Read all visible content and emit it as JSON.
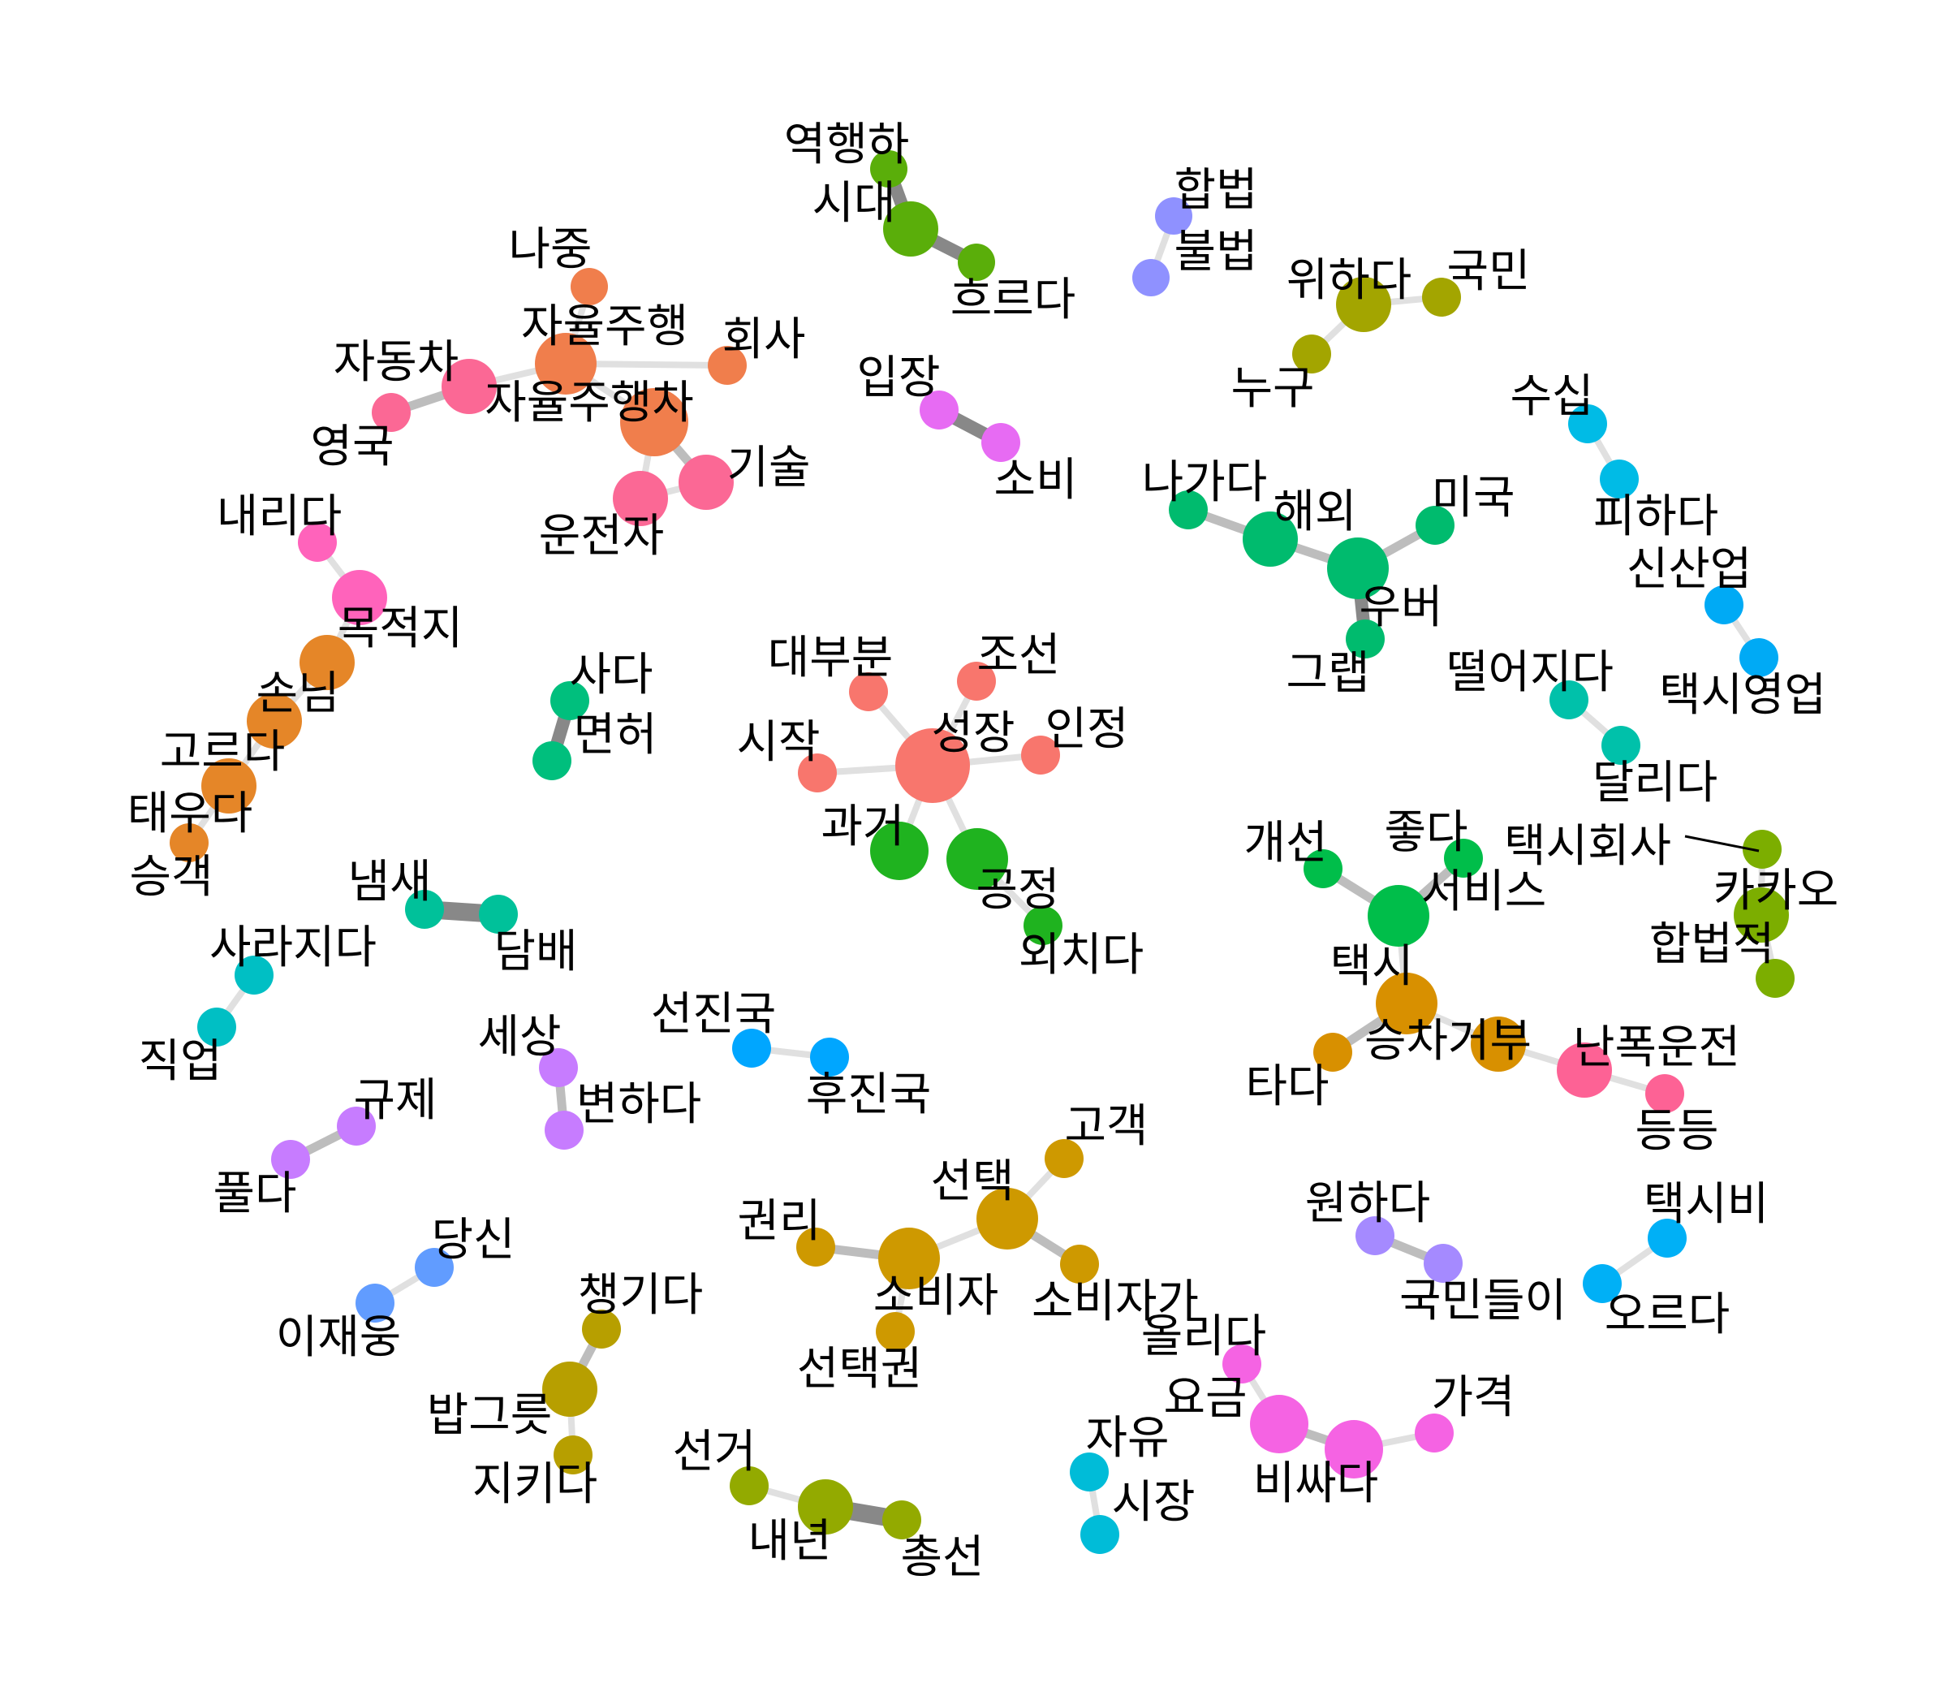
{
  "graph": {
    "nodes": [
      {
        "id": "역행하",
        "group": "g1"
      },
      {
        "id": "시대",
        "group": "g1"
      },
      {
        "id": "흐르다",
        "group": "g1"
      },
      {
        "id": "합법",
        "group": "g2"
      },
      {
        "id": "불법",
        "group": "g2"
      },
      {
        "id": "위하다",
        "group": "g3"
      },
      {
        "id": "국민",
        "group": "g3"
      },
      {
        "id": "누구",
        "group": "g3"
      },
      {
        "id": "나중",
        "group": "g4"
      },
      {
        "id": "자율주행",
        "group": "g4"
      },
      {
        "id": "회사",
        "group": "g4"
      },
      {
        "id": "자율주행차",
        "group": "g4"
      },
      {
        "id": "자동차",
        "group": "g5"
      },
      {
        "id": "영국",
        "group": "g5"
      },
      {
        "id": "운전자",
        "group": "g5"
      },
      {
        "id": "기술",
        "group": "g5"
      },
      {
        "id": "입장",
        "group": "g6"
      },
      {
        "id": "소비",
        "group": "g6"
      },
      {
        "id": "수십",
        "group": "g7"
      },
      {
        "id": "피하다",
        "group": "g7"
      },
      {
        "id": "나가다",
        "group": "g8"
      },
      {
        "id": "해외",
        "group": "g8"
      },
      {
        "id": "우버",
        "group": "g8"
      },
      {
        "id": "미국",
        "group": "g8"
      },
      {
        "id": "그랩",
        "group": "g8"
      },
      {
        "id": "신산업",
        "group": "g9"
      },
      {
        "id": "택시영업",
        "group": "g9"
      },
      {
        "id": "내리다",
        "group": "g10"
      },
      {
        "id": "목적지",
        "group": "g10"
      },
      {
        "id": "손님",
        "group": "g11"
      },
      {
        "id": "고르다",
        "group": "g11"
      },
      {
        "id": "태우다",
        "group": "g11"
      },
      {
        "id": "승객",
        "group": "g11"
      },
      {
        "id": "사다",
        "group": "g12"
      },
      {
        "id": "면허",
        "group": "g12"
      },
      {
        "id": "대부분",
        "group": "g13"
      },
      {
        "id": "조선",
        "group": "g13"
      },
      {
        "id": "시작",
        "group": "g13"
      },
      {
        "id": "성장",
        "group": "g13"
      },
      {
        "id": "인정",
        "group": "g13"
      },
      {
        "id": "과거",
        "group": "g14"
      },
      {
        "id": "공정",
        "group": "g14"
      },
      {
        "id": "외치다",
        "group": "g14"
      },
      {
        "id": "떨어지다",
        "group": "g15"
      },
      {
        "id": "달리다",
        "group": "g15"
      },
      {
        "id": "개선",
        "group": "g16"
      },
      {
        "id": "좋다",
        "group": "g16"
      },
      {
        "id": "서비스",
        "group": "g16"
      },
      {
        "id": "택시회사",
        "group": "g17"
      },
      {
        "id": "카카오",
        "group": "g17"
      },
      {
        "id": "합법적",
        "group": "g17"
      },
      {
        "id": "냄새",
        "group": "g18"
      },
      {
        "id": "담배",
        "group": "g18"
      },
      {
        "id": "사라지다",
        "group": "g19"
      },
      {
        "id": "직업",
        "group": "g19"
      },
      {
        "id": "택시",
        "group": "g20"
      },
      {
        "id": "승차거부",
        "group": "g20"
      },
      {
        "id": "타다",
        "group": "g20"
      },
      {
        "id": "난폭운전",
        "group": "g21"
      },
      {
        "id": "등등",
        "group": "g21"
      },
      {
        "id": "세상",
        "group": "g22"
      },
      {
        "id": "변하다",
        "group": "g22"
      },
      {
        "id": "선진국",
        "group": "g23"
      },
      {
        "id": "후진국",
        "group": "g23"
      },
      {
        "id": "규제",
        "group": "g24"
      },
      {
        "id": "풀다",
        "group": "g24"
      },
      {
        "id": "고객",
        "group": "g25"
      },
      {
        "id": "선택",
        "group": "g25"
      },
      {
        "id": "권리",
        "group": "g25"
      },
      {
        "id": "소비자",
        "group": "g25"
      },
      {
        "id": "소비자가",
        "group": "g25"
      },
      {
        "id": "선택권",
        "group": "g25"
      },
      {
        "id": "원하다",
        "group": "g26"
      },
      {
        "id": "국민들이",
        "group": "g26"
      },
      {
        "id": "택시비",
        "group": "g27"
      },
      {
        "id": "오르다",
        "group": "g27"
      },
      {
        "id": "당신",
        "group": "g28"
      },
      {
        "id": "이재웅",
        "group": "g28"
      },
      {
        "id": "챙기다",
        "group": "g29"
      },
      {
        "id": "밥그릇",
        "group": "g29"
      },
      {
        "id": "지키다",
        "group": "g29"
      },
      {
        "id": "올리다",
        "group": "g30"
      },
      {
        "id": "요금",
        "group": "g30"
      },
      {
        "id": "비싸다",
        "group": "g30"
      },
      {
        "id": "가격",
        "group": "g30"
      },
      {
        "id": "자유",
        "group": "g31"
      },
      {
        "id": "시장",
        "group": "g31"
      },
      {
        "id": "선거",
        "group": "g32"
      },
      {
        "id": "내년",
        "group": "g32"
      },
      {
        "id": "총선",
        "group": "g32"
      }
    ],
    "edges": [
      {
        "source": "역행하",
        "target": "시대",
        "weight": 3
      },
      {
        "source": "시대",
        "target": "흐르다",
        "weight": 3
      },
      {
        "source": "합법",
        "target": "불법",
        "weight": 1
      },
      {
        "source": "위하다",
        "target": "국민",
        "weight": 1
      },
      {
        "source": "위하다",
        "target": "누구",
        "weight": 1
      },
      {
        "source": "나중",
        "target": "자율주행",
        "weight": 1
      },
      {
        "source": "자율주행",
        "target": "회사",
        "weight": 1
      },
      {
        "source": "자율주행",
        "target": "자동차",
        "weight": 1
      },
      {
        "source": "자율주행",
        "target": "자율주행차",
        "weight": 1
      },
      {
        "source": "자동차",
        "target": "영국",
        "weight": 2
      },
      {
        "source": "자율주행차",
        "target": "기술",
        "weight": 2
      },
      {
        "source": "자율주행차",
        "target": "운전자",
        "weight": 1
      },
      {
        "source": "운전자",
        "target": "기술",
        "weight": 1
      },
      {
        "source": "입장",
        "target": "소비",
        "weight": 3
      },
      {
        "source": "수십",
        "target": "피하다",
        "weight": 1
      },
      {
        "source": "나가다",
        "target": "해외",
        "weight": 2
      },
      {
        "source": "해외",
        "target": "우버",
        "weight": 2
      },
      {
        "source": "우버",
        "target": "미국",
        "weight": 2
      },
      {
        "source": "우버",
        "target": "그랩",
        "weight": 3
      },
      {
        "source": "신산업",
        "target": "택시영업",
        "weight": 1
      },
      {
        "source": "내리다",
        "target": "목적지",
        "weight": 1
      },
      {
        "source": "목적지",
        "target": "손님",
        "weight": 1
      },
      {
        "source": "손님",
        "target": "고르다",
        "weight": 1
      },
      {
        "source": "고르다",
        "target": "태우다",
        "weight": 1
      },
      {
        "source": "태우다",
        "target": "승객",
        "weight": 1
      },
      {
        "source": "사다",
        "target": "면허",
        "weight": 3
      },
      {
        "source": "성장",
        "target": "대부분",
        "weight": 1
      },
      {
        "source": "성장",
        "target": "조선",
        "weight": 1
      },
      {
        "source": "성장",
        "target": "시작",
        "weight": 1
      },
      {
        "source": "성장",
        "target": "인정",
        "weight": 1
      },
      {
        "source": "성장",
        "target": "과거",
        "weight": 1
      },
      {
        "source": "성장",
        "target": "공정",
        "weight": 1
      },
      {
        "source": "공정",
        "target": "외치다",
        "weight": 1
      },
      {
        "source": "떨어지다",
        "target": "달리다",
        "weight": 1
      },
      {
        "source": "개선",
        "target": "서비스",
        "weight": 2
      },
      {
        "source": "좋다",
        "target": "서비스",
        "weight": 2
      },
      {
        "source": "서비스",
        "target": "택시",
        "weight": 1
      },
      {
        "source": "카카오",
        "target": "택시회사",
        "weight": 1
      },
      {
        "source": "카카오",
        "target": "합법적",
        "weight": 1
      },
      {
        "source": "냄새",
        "target": "담배",
        "weight": 4
      },
      {
        "source": "사라지다",
        "target": "직업",
        "weight": 1
      },
      {
        "source": "택시",
        "target": "승차거부",
        "weight": 1
      },
      {
        "source": "택시",
        "target": "타다",
        "weight": 2
      },
      {
        "source": "승차거부",
        "target": "난폭운전",
        "weight": 1
      },
      {
        "source": "난폭운전",
        "target": "등등",
        "weight": 1
      },
      {
        "source": "세상",
        "target": "변하다",
        "weight": 2
      },
      {
        "source": "선진국",
        "target": "후진국",
        "weight": 1
      },
      {
        "source": "규제",
        "target": "풀다",
        "weight": 2
      },
      {
        "source": "선택",
        "target": "고객",
        "weight": 1
      },
      {
        "source": "선택",
        "target": "소비자",
        "weight": 1
      },
      {
        "source": "선택",
        "target": "소비자가",
        "weight": 2
      },
      {
        "source": "소비자",
        "target": "권리",
        "weight": 2
      },
      {
        "source": "소비자",
        "target": "선택권",
        "weight": 1
      },
      {
        "source": "원하다",
        "target": "국민들이",
        "weight": 2
      },
      {
        "source": "택시비",
        "target": "오르다",
        "weight": 1
      },
      {
        "source": "당신",
        "target": "이재웅",
        "weight": 1
      },
      {
        "source": "챙기다",
        "target": "밥그릇",
        "weight": 2
      },
      {
        "source": "밥그릇",
        "target": "지키다",
        "weight": 1
      },
      {
        "source": "올리다",
        "target": "요금",
        "weight": 1
      },
      {
        "source": "요금",
        "target": "비싸다",
        "weight": 2
      },
      {
        "source": "비싸다",
        "target": "가격",
        "weight": 1
      },
      {
        "source": "자유",
        "target": "시장",
        "weight": 1
      },
      {
        "source": "선거",
        "target": "내년",
        "weight": 1
      },
      {
        "source": "내년",
        "target": "총선",
        "weight": 4
      }
    ]
  },
  "colors": {
    "g1": "#5aae0a",
    "g2": "#8f91ff",
    "g3": "#a3a500",
    "g4": "#f07e4c",
    "g5": "#fb6895",
    "g6": "#e76bf3",
    "g7": "#00bbe6",
    "g8": "#00bb6e",
    "g9": "#00aaf5",
    "g10": "#ff63bb",
    "g11": "#e58628",
    "g12": "#00bf7d",
    "g13": "#f8766d",
    "g14": "#1fb31f",
    "g15": "#00c1aa",
    "g16": "#00be4a",
    "g17": "#7cae00",
    "g18": "#00c19a",
    "g19": "#00bfc4",
    "g20": "#d89000",
    "g21": "#fd6295",
    "g22": "#c77cff",
    "g23": "#00a6ff",
    "g24": "#c77cff",
    "g25": "#ce9900",
    "g26": "#a58aff",
    "g27": "#00b0f6",
    "g28": "#619cff",
    "g29": "#b79f00",
    "g30": "#f563e3",
    "g31": "#00bcd8",
    "g32": "#93aa00",
    "edge_light": "#e0e0e0",
    "edge_mid": "#bdbdbd",
    "edge_dark": "#888888",
    "label": "#000000",
    "background": "#ffffff"
  }
}
